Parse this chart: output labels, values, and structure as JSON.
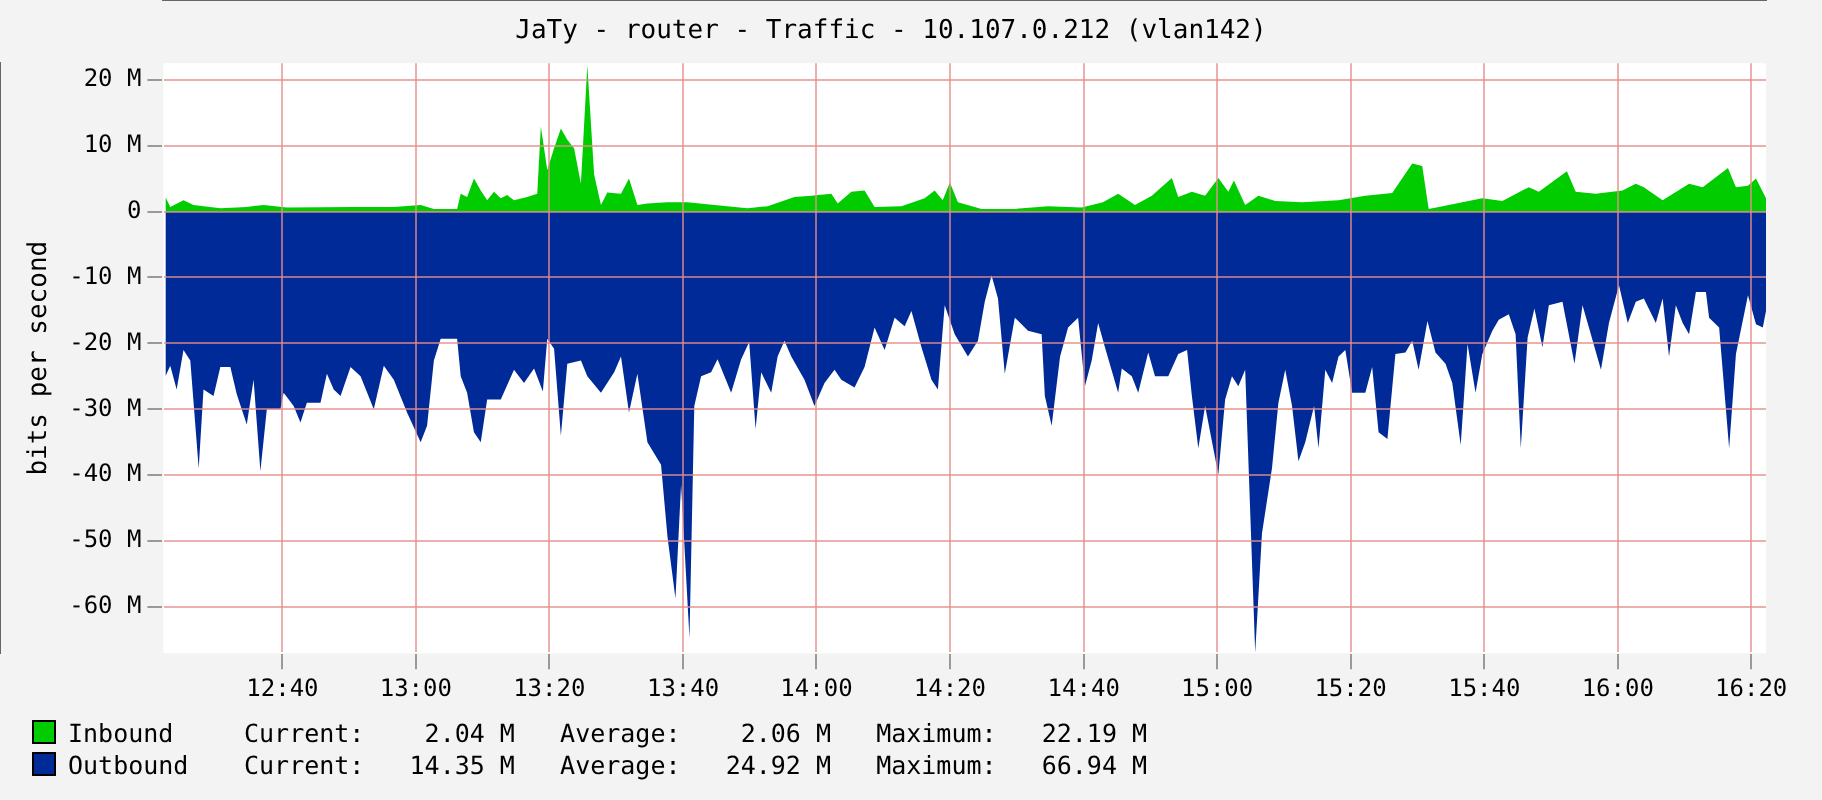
{
  "chart_data": {
    "type": "area",
    "title": "JaTy - router - Traffic - 10.107.0.212 (vlan142)",
    "ylabel": "bits per second",
    "xlim": [
      12.37,
      16.37
    ],
    "ylim": [
      -67,
      22.5
    ],
    "xticks": [
      {
        "value": 12.667,
        "label": "12:40"
      },
      {
        "value": 13,
        "label": "13:00"
      },
      {
        "value": 13.333,
        "label": "13:20"
      },
      {
        "value": 13.667,
        "label": "13:40"
      },
      {
        "value": 14,
        "label": "14:00"
      },
      {
        "value": 14.333,
        "label": "14:20"
      },
      {
        "value": 14.667,
        "label": "14:40"
      },
      {
        "value": 15,
        "label": "15:00"
      },
      {
        "value": 15.333,
        "label": "15:20"
      },
      {
        "value": 15.667,
        "label": "15:40"
      },
      {
        "value": 16,
        "label": "16:00"
      },
      {
        "value": 16.333,
        "label": "16:20"
      }
    ],
    "yticks": [
      {
        "value": -60,
        "label": "-60 M"
      },
      {
        "value": -50,
        "label": "-50 M"
      },
      {
        "value": -40,
        "label": "-40 M"
      },
      {
        "value": -30,
        "label": "-30 M"
      },
      {
        "value": -20,
        "label": "-20 M"
      },
      {
        "value": -10,
        "label": "-10 M"
      },
      {
        "value": 0,
        "label": "0"
      },
      {
        "value": 10,
        "label": "10 M"
      },
      {
        "value": 20,
        "label": "20 M"
      }
    ],
    "grid": true,
    "legend": "bottom",
    "annotations": [
      "Current:    2.04 M   Average:    2.06 M   Maximum:   22.19 M",
      "Current:   14.35 M   Average:   24.92 M   Maximum:   66.94 M"
    ],
    "series": [
      {
        "name": "Inbound",
        "color": "#00cc00",
        "x": [
          12.375,
          12.387,
          12.42,
          12.445,
          12.512,
          12.578,
          12.62,
          12.678,
          12.845,
          12.945,
          13.012,
          13.045,
          13.103,
          13.112,
          13.128,
          13.145,
          13.162,
          13.178,
          13.195,
          13.212,
          13.228,
          13.245,
          13.278,
          13.303,
          13.312,
          13.328,
          13.345,
          13.362,
          13.378,
          13.395,
          13.412,
          13.428,
          13.445,
          13.462,
          13.478,
          13.512,
          13.532,
          13.553,
          13.578,
          13.628,
          13.678,
          13.745,
          13.828,
          13.878,
          13.945,
          13.987,
          14.037,
          14.053,
          14.087,
          14.12,
          14.145,
          14.212,
          14.27,
          14.295,
          14.315,
          14.333,
          14.353,
          14.412,
          14.495,
          14.578,
          14.662,
          14.715,
          14.753,
          14.795,
          14.837,
          14.887,
          14.903,
          14.937,
          14.97,
          15.003,
          15.028,
          15.042,
          15.07,
          15.103,
          15.145,
          15.212,
          15.303,
          15.37,
          15.437,
          15.487,
          15.512,
          15.528,
          15.578,
          15.662,
          15.712,
          15.778,
          15.803,
          15.873,
          15.895,
          15.945,
          16.012,
          16.045,
          16.065,
          16.112,
          16.178,
          16.212,
          16.275,
          16.295,
          16.325,
          16.345,
          16.37
        ],
        "values": [
          2.2,
          0.7,
          1.7,
          1,
          0.5,
          0.7,
          1,
          0.6,
          0.7,
          0.7,
          1,
          0.4,
          0.4,
          2.7,
          2.2,
          5,
          3.2,
          1.7,
          3,
          2,
          2.5,
          1.7,
          2.2,
          2.7,
          12.9,
          6.3,
          9.6,
          12.6,
          10.9,
          9.6,
          4.2,
          22.2,
          5.6,
          1,
          2.9,
          2.7,
          5,
          1,
          1.2,
          1.4,
          1.4,
          1,
          0.5,
          0.8,
          2.2,
          2.4,
          2.7,
          1.2,
          3,
          3.2,
          0.7,
          0.8,
          2,
          3.2,
          1.7,
          4.4,
          1.4,
          0.4,
          0.4,
          0.8,
          0.6,
          1.4,
          2.7,
          1,
          2.4,
          5.1,
          2.2,
          3,
          2.4,
          5.1,
          3,
          4.7,
          1,
          2.4,
          1.6,
          1.4,
          1.7,
          2.4,
          2.8,
          7.3,
          6.9,
          0.4,
          1,
          2,
          1.6,
          3.7,
          3,
          6.1,
          3,
          2.7,
          3.2,
          4.2,
          3.7,
          1.7,
          4.2,
          3.7,
          6.6,
          3.7,
          3.9,
          5,
          2
        ]
      },
      {
        "name": "Outbound",
        "color": "#002a97",
        "x": [
          12.375,
          12.387,
          12.403,
          12.42,
          12.437,
          12.458,
          12.47,
          12.495,
          12.512,
          12.537,
          12.553,
          12.578,
          12.595,
          12.612,
          12.628,
          12.662,
          12.67,
          12.695,
          12.712,
          12.728,
          12.762,
          12.778,
          12.795,
          12.812,
          12.837,
          12.862,
          12.895,
          12.92,
          12.945,
          12.978,
          13.012,
          13.028,
          13.045,
          13.062,
          13.103,
          13.112,
          13.128,
          13.145,
          13.162,
          13.178,
          13.212,
          13.245,
          13.27,
          13.295,
          13.317,
          13.328,
          13.345,
          13.362,
          13.378,
          13.412,
          13.428,
          13.462,
          13.495,
          13.512,
          13.532,
          13.553,
          13.578,
          13.612,
          13.628,
          13.648,
          13.662,
          13.683,
          13.695,
          13.712,
          13.737,
          13.753,
          13.787,
          13.812,
          13.832,
          13.848,
          13.862,
          13.887,
          13.903,
          13.92,
          13.937,
          13.97,
          13.995,
          14.02,
          14.045,
          14.062,
          14.095,
          14.12,
          14.145,
          14.17,
          14.195,
          14.22,
          14.237,
          14.262,
          14.287,
          14.303,
          14.32,
          14.345,
          14.378,
          14.403,
          14.42,
          14.437,
          14.453,
          14.47,
          14.495,
          14.528,
          14.562,
          14.57,
          14.587,
          14.608,
          14.628,
          14.653,
          14.67,
          14.687,
          14.703,
          14.72,
          14.753,
          14.762,
          14.787,
          14.803,
          14.828,
          14.845,
          14.878,
          14.903,
          14.925,
          14.937,
          14.953,
          14.97,
          15.003,
          15.02,
          15.037,
          15.053,
          15.07,
          15.095,
          15.112,
          15.137,
          15.153,
          15.17,
          15.187,
          15.203,
          15.22,
          15.242,
          15.253,
          15.27,
          15.287,
          15.303,
          15.32,
          15.337,
          15.37,
          15.387,
          15.403,
          15.425,
          15.445,
          15.47,
          15.487,
          15.503,
          15.525,
          15.545,
          15.57,
          15.587,
          15.608,
          15.625,
          15.645,
          15.662,
          15.687,
          15.703,
          15.728,
          15.745,
          15.758,
          15.775,
          15.792,
          15.812,
          15.828,
          15.862,
          15.892,
          15.912,
          15.928,
          15.958,
          15.978,
          16.003,
          16.025,
          16.045,
          16.065,
          16.095,
          16.112,
          16.128,
          16.145,
          16.162,
          16.178,
          16.195,
          16.22,
          16.228,
          16.253,
          16.278,
          16.295,
          16.325,
          16.345,
          16.362,
          16.37
        ],
        "values": [
          -25,
          -23.4,
          -27,
          -21,
          -22.6,
          -39,
          -27,
          -28,
          -23.6,
          -23.6,
          -27.7,
          -32.3,
          -25.5,
          -39.4,
          -30,
          -30,
          -27.5,
          -29.5,
          -32,
          -29,
          -29,
          -24.6,
          -27,
          -28,
          -23.6,
          -25,
          -30,
          -23.4,
          -25.5,
          -30.5,
          -35,
          -32.5,
          -22.6,
          -19.3,
          -19.3,
          -25,
          -27.5,
          -33.5,
          -35,
          -28.5,
          -28.5,
          -24,
          -26,
          -23.8,
          -27.3,
          -19.3,
          -20.8,
          -34,
          -23.1,
          -22.6,
          -25,
          -27.5,
          -24.4,
          -22,
          -30.5,
          -24.6,
          -35,
          -38.4,
          -49.3,
          -58.7,
          -41.4,
          -64.7,
          -29.5,
          -25,
          -24.4,
          -22.4,
          -27.5,
          -22.4,
          -19.8,
          -33,
          -24.4,
          -27.5,
          -22,
          -19.6,
          -22,
          -25.5,
          -29.5,
          -26,
          -24,
          -25.5,
          -26.7,
          -23.6,
          -17.6,
          -21,
          -16.1,
          -17.4,
          -15.1,
          -20.6,
          -25.5,
          -27,
          -14.2,
          -18.6,
          -22,
          -19.6,
          -13.7,
          -9.7,
          -13.2,
          -24.6,
          -16.1,
          -18.1,
          -18.6,
          -28,
          -32.5,
          -22,
          -17.6,
          -16.1,
          -26.5,
          -22.6,
          -16.9,
          -20.6,
          -27.5,
          -23.8,
          -25,
          -27.5,
          -21.4,
          -25,
          -25,
          -21.6,
          -21,
          -28,
          -35.9,
          -29.5,
          -39.9,
          -28.5,
          -25,
          -26.5,
          -24,
          -66.9,
          -48.8,
          -38.9,
          -29,
          -24,
          -29.5,
          -37.9,
          -35,
          -29.5,
          -35.9,
          -24,
          -26,
          -22,
          -21,
          -27.5,
          -27.5,
          -23.6,
          -33.5,
          -34.5,
          -21.6,
          -21.4,
          -19.6,
          -24,
          -16.6,
          -21.4,
          -23.1,
          -26,
          -35.4,
          -20.1,
          -27.5,
          -21.6,
          -18.1,
          -16.4,
          -15.6,
          -18.6,
          -35.9,
          -19.1,
          -14.7,
          -20.6,
          -14.2,
          -13.7,
          -23.1,
          -14.2,
          -17.6,
          -24,
          -16.9,
          -11.2,
          -16.9,
          -13.7,
          -13.2,
          -16.9,
          -13.2,
          -22,
          -14.2,
          -16.9,
          -18.6,
          -12.2,
          -12.2,
          -16.1,
          -17.6,
          -35.9,
          -21.6,
          -12.7,
          -17.1,
          -17.6,
          -15.1
        ]
      }
    ]
  }
}
